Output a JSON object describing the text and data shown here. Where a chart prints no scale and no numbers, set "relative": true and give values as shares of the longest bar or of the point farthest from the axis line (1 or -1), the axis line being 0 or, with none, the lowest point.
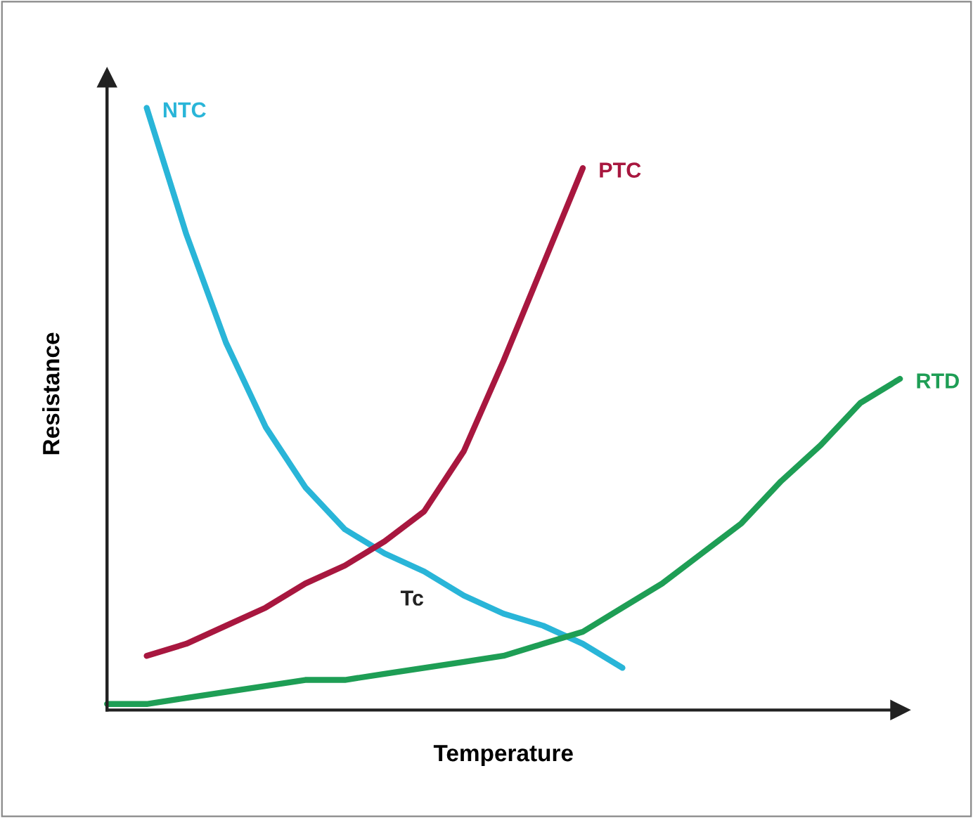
{
  "chart_data": {
    "type": "line",
    "relative": true,
    "xlabel": "Temperature",
    "ylabel": "Resistance",
    "legend": false,
    "marker": "none",
    "line_style": "solid",
    "categories": [
      null,
      null,
      null,
      null,
      null,
      null,
      null,
      null,
      null,
      null,
      null,
      null,
      null,
      null,
      null,
      null,
      null,
      null,
      null,
      null,
      null
    ],
    "series": [
      {
        "name": "NTC",
        "color": "#29b5d8",
        "values": [
          null,
          1,
          0.79,
          0.61,
          0.47,
          0.37,
          0.3,
          0.26,
          0.23,
          0.19,
          0.16,
          0.14,
          0.11,
          0.07,
          null,
          null,
          null,
          null,
          null,
          null,
          null
        ]
      },
      {
        "name": "PTC",
        "color": "#a8173f",
        "values": [
          null,
          0.09,
          0.11,
          0.14,
          0.17,
          0.21,
          0.24,
          0.28,
          0.33,
          0.43,
          0.58,
          0.74,
          0.9,
          null,
          null,
          null,
          null,
          null,
          null,
          null,
          null
        ]
      },
      {
        "name": "RTD",
        "color": "#1e9e55",
        "values": [
          0.01,
          0.01,
          0.02,
          0.03,
          0.04,
          0.05,
          0.05,
          0.06,
          0.07,
          0.08,
          0.09,
          0.11,
          0.13,
          0.17,
          0.21,
          0.26,
          0.31,
          0.38,
          0.44,
          0.51,
          0.55
        ]
      }
    ],
    "annotations": [
      "Tc"
    ]
  }
}
